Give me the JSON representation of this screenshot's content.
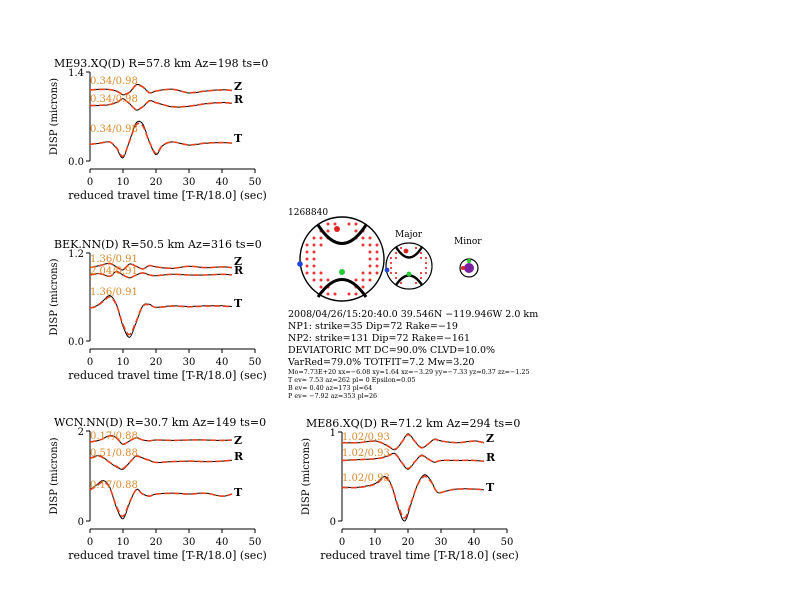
{
  "panels": [
    {
      "title": "ME93.XQ(D) R=57.8 km Az=198 ts=0",
      "ylabel": "DISP (microns)",
      "xlabel": "reduced travel time [T-R/18.0] (sec)",
      "ytick_top": "1.4",
      "ytick_bottom": "0.0",
      "xticks": [
        "0",
        "10",
        "20",
        "30",
        "40",
        "50"
      ],
      "traces": [
        {
          "component": "Z",
          "fit": "0.34/0.98"
        },
        {
          "component": "R",
          "fit": "0.34/0.98"
        },
        {
          "component": "T",
          "fit": "0.34/0.98"
        }
      ]
    },
    {
      "title": "BEK.NN(D) R=50.5 km Az=316 ts=0",
      "ylabel": "DISP (microns)",
      "xlabel": "reduced travel time [T-R/18.0] (sec)",
      "ytick_top": "1.2",
      "ytick_bottom": "0.0",
      "xticks": [
        "0",
        "10",
        "20",
        "30",
        "40",
        "50"
      ],
      "traces": [
        {
          "component": "Z",
          "fit": "1.36/0.91"
        },
        {
          "component": "R",
          "fit": "2.04/0.91"
        },
        {
          "component": "T",
          "fit": "1.36/0.91"
        }
      ]
    },
    {
      "title": "WCN.NN(D) R=30.7 km Az=149 ts=0",
      "ylabel": "DISP (microns)",
      "xlabel": "reduced travel time [T-R/18.0] (sec)",
      "ytick_top": "2",
      "ytick_bottom": "0",
      "xticks": [
        "0",
        "10",
        "20",
        "30",
        "40",
        "50"
      ],
      "traces": [
        {
          "component": "Z",
          "fit": "0.17/0.88"
        },
        {
          "component": "R",
          "fit": "0.51/0.88"
        },
        {
          "component": "T",
          "fit": "0.17/0.88"
        }
      ]
    },
    {
      "title": "ME86.XQ(D) R=71.2 km Az=294 ts=0",
      "ylabel": "DISP (microns)",
      "xlabel": "reduced travel time [T-R/18.0] (sec)",
      "ytick_top": "1",
      "ytick_bottom": "0",
      "xticks": [
        "0",
        "10",
        "20",
        "30",
        "40",
        "50"
      ],
      "traces": [
        {
          "component": "Z",
          "fit": "1.02/0.93"
        },
        {
          "component": "R",
          "fit": "1.02/0.93"
        },
        {
          "component": "T",
          "fit": "1.02/0.93"
        }
      ]
    }
  ],
  "focal": {
    "event_id": "1268840",
    "major_label": "Major",
    "minor_label": "Minor",
    "info_lines": [
      "2008/04/26/15:20:40.0 39.546N −119.946W 2.0 km",
      "NP1: strike=35 Dip=72 Rake=−19",
      "NP2: strike=131 Dip=72 Rake=−161",
      "DEVIATORIC MT DC=90.0% CLVD=10.0%",
      "VarRed=79.0% TOTFIT=7.2 Mw=3.20"
    ],
    "small_lines": [
      "Mo=7.73E+20 xx=−6.08 xy=1.64 xz=−3.29 yy=−7.33 yz=0.37 zz=−1.25",
      "T ev= 7.53 az=262 pl= 0 Epsilon=0.05",
      "B ev= 0.40 az=173 pl=64",
      "P ev= −7.92 az=353 pl=26"
    ]
  },
  "colors": {
    "observed": "#000000",
    "synthetic": "#e8401c",
    "fit_text": "#d98a2a",
    "p_axis": "#dd2222",
    "t_axis": "#2244dd",
    "b_axis": "#22cc33"
  },
  "chart_data": [
    {
      "type": "line",
      "title": "ME93.XQ(D) R=57.8 km Az=198 ts=0",
      "xlabel": "reduced travel time [T-R/18.0] (sec)",
      "ylabel": "DISP (microns)",
      "xlim": [
        0,
        50
      ],
      "ylim": [
        0,
        1.4
      ],
      "series": [
        {
          "name": "Z",
          "x": [
            0,
            5,
            8,
            10,
            12,
            14,
            16,
            18,
            20,
            25,
            30,
            35,
            40,
            43
          ],
          "y": [
            1.12,
            1.13,
            1.1,
            1.04,
            1.08,
            1.2,
            1.17,
            1.07,
            1.1,
            1.13,
            1.07,
            1.1,
            1.12,
            1.11
          ]
        },
        {
          "name": "R",
          "x": [
            0,
            5,
            8,
            10,
            12,
            14,
            16,
            18,
            20,
            25,
            30,
            35,
            40,
            43
          ],
          "y": [
            0.87,
            0.88,
            0.92,
            0.98,
            0.9,
            0.8,
            0.85,
            0.95,
            0.92,
            0.85,
            0.86,
            0.9,
            0.92,
            0.91
          ]
        },
        {
          "name": "T",
          "x": [
            0,
            3,
            6,
            8,
            10,
            12,
            14,
            16,
            18,
            20,
            22,
            25,
            30,
            35,
            40,
            43
          ],
          "y": [
            0.26,
            0.28,
            0.3,
            0.2,
            0.05,
            0.32,
            0.6,
            0.58,
            0.3,
            0.1,
            0.24,
            0.3,
            0.25,
            0.28,
            0.29,
            0.28
          ]
        }
      ]
    },
    {
      "type": "line",
      "title": "BEK.NN(D) R=50.5 km Az=316 ts=0",
      "xlabel": "reduced travel time [T-R/18.0] (sec)",
      "ylabel": "DISP (microns)",
      "xlim": [
        0,
        50
      ],
      "ylim": [
        0,
        1.2
      ],
      "series": [
        {
          "name": "Z",
          "x": [
            0,
            3,
            6,
            8,
            10,
            12,
            14,
            16,
            18,
            20,
            25,
            30,
            35,
            40,
            43
          ],
          "y": [
            1.0,
            1.03,
            1.06,
            1.01,
            0.97,
            1.05,
            1.02,
            0.98,
            1.03,
            1.01,
            0.99,
            1.02,
            1.0,
            1.01,
            1.0
          ]
        },
        {
          "name": "R",
          "x": [
            0,
            3,
            6,
            8,
            10,
            12,
            14,
            16,
            18,
            20,
            25,
            30,
            35,
            40,
            43
          ],
          "y": [
            0.9,
            0.92,
            0.88,
            0.95,
            0.9,
            0.86,
            0.9,
            0.93,
            0.9,
            0.89,
            0.91,
            0.9,
            0.9,
            0.91,
            0.9
          ]
        },
        {
          "name": "T",
          "x": [
            0,
            2,
            4,
            6,
            8,
            10,
            12,
            14,
            16,
            18,
            20,
            25,
            30,
            35,
            40,
            43
          ],
          "y": [
            0.45,
            0.48,
            0.55,
            0.62,
            0.5,
            0.2,
            0.05,
            0.25,
            0.48,
            0.5,
            0.46,
            0.48,
            0.47,
            0.48,
            0.48,
            0.47
          ]
        }
      ]
    },
    {
      "type": "line",
      "title": "WCN.NN(D) R=30.7 km Az=149 ts=0",
      "xlabel": "reduced travel time [T-R/18.0] (sec)",
      "ylabel": "DISP (microns)",
      "xlim": [
        0,
        50
      ],
      "ylim": [
        0,
        2
      ],
      "series": [
        {
          "name": "Z",
          "x": [
            0,
            3,
            6,
            8,
            10,
            12,
            14,
            16,
            18,
            20,
            25,
            30,
            35,
            40,
            43
          ],
          "y": [
            1.75,
            1.8,
            1.9,
            1.85,
            1.7,
            1.78,
            1.85,
            1.8,
            1.78,
            1.8,
            1.79,
            1.8,
            1.8,
            1.79,
            1.8
          ]
        },
        {
          "name": "R",
          "x": [
            0,
            3,
            6,
            8,
            10,
            12,
            14,
            16,
            18,
            20,
            25,
            30,
            35,
            40,
            43
          ],
          "y": [
            1.4,
            1.45,
            1.3,
            1.2,
            1.15,
            1.3,
            1.45,
            1.4,
            1.35,
            1.3,
            1.32,
            1.33,
            1.32,
            1.33,
            1.35
          ]
        },
        {
          "name": "T",
          "x": [
            0,
            2,
            4,
            6,
            8,
            10,
            12,
            14,
            16,
            18,
            20,
            25,
            30,
            35,
            40,
            43
          ],
          "y": [
            0.7,
            0.8,
            0.9,
            0.75,
            0.3,
            0.05,
            0.4,
            0.7,
            0.6,
            0.55,
            0.6,
            0.62,
            0.6,
            0.62,
            0.55,
            0.6
          ]
        }
      ]
    },
    {
      "type": "line",
      "title": "ME86.XQ(D) R=71.2 km Az=294 ts=0",
      "xlabel": "reduced travel time [T-R/18.0] (sec)",
      "ylabel": "DISP (microns)",
      "xlim": [
        0,
        50
      ],
      "ylim": [
        0,
        1
      ],
      "series": [
        {
          "name": "Z",
          "x": [
            0,
            5,
            10,
            13,
            16,
            18,
            20,
            22,
            24,
            26,
            28,
            30,
            35,
            40,
            43
          ],
          "y": [
            0.88,
            0.88,
            0.9,
            0.86,
            0.8,
            0.88,
            0.98,
            0.9,
            0.82,
            0.86,
            0.92,
            0.9,
            0.88,
            0.9,
            0.88
          ]
        },
        {
          "name": "R",
          "x": [
            0,
            5,
            10,
            13,
            16,
            18,
            20,
            22,
            24,
            26,
            28,
            30,
            35,
            40,
            43
          ],
          "y": [
            0.68,
            0.69,
            0.7,
            0.72,
            0.76,
            0.66,
            0.58,
            0.66,
            0.74,
            0.7,
            0.66,
            0.68,
            0.68,
            0.68,
            0.67
          ]
        },
        {
          "name": "T",
          "x": [
            0,
            5,
            10,
            13,
            15,
            17,
            19,
            21,
            23,
            25,
            27,
            29,
            32,
            35,
            40,
            43
          ],
          "y": [
            0.38,
            0.38,
            0.42,
            0.5,
            0.4,
            0.15,
            0.0,
            0.2,
            0.42,
            0.52,
            0.45,
            0.32,
            0.34,
            0.36,
            0.36,
            0.35
          ]
        }
      ]
    }
  ]
}
